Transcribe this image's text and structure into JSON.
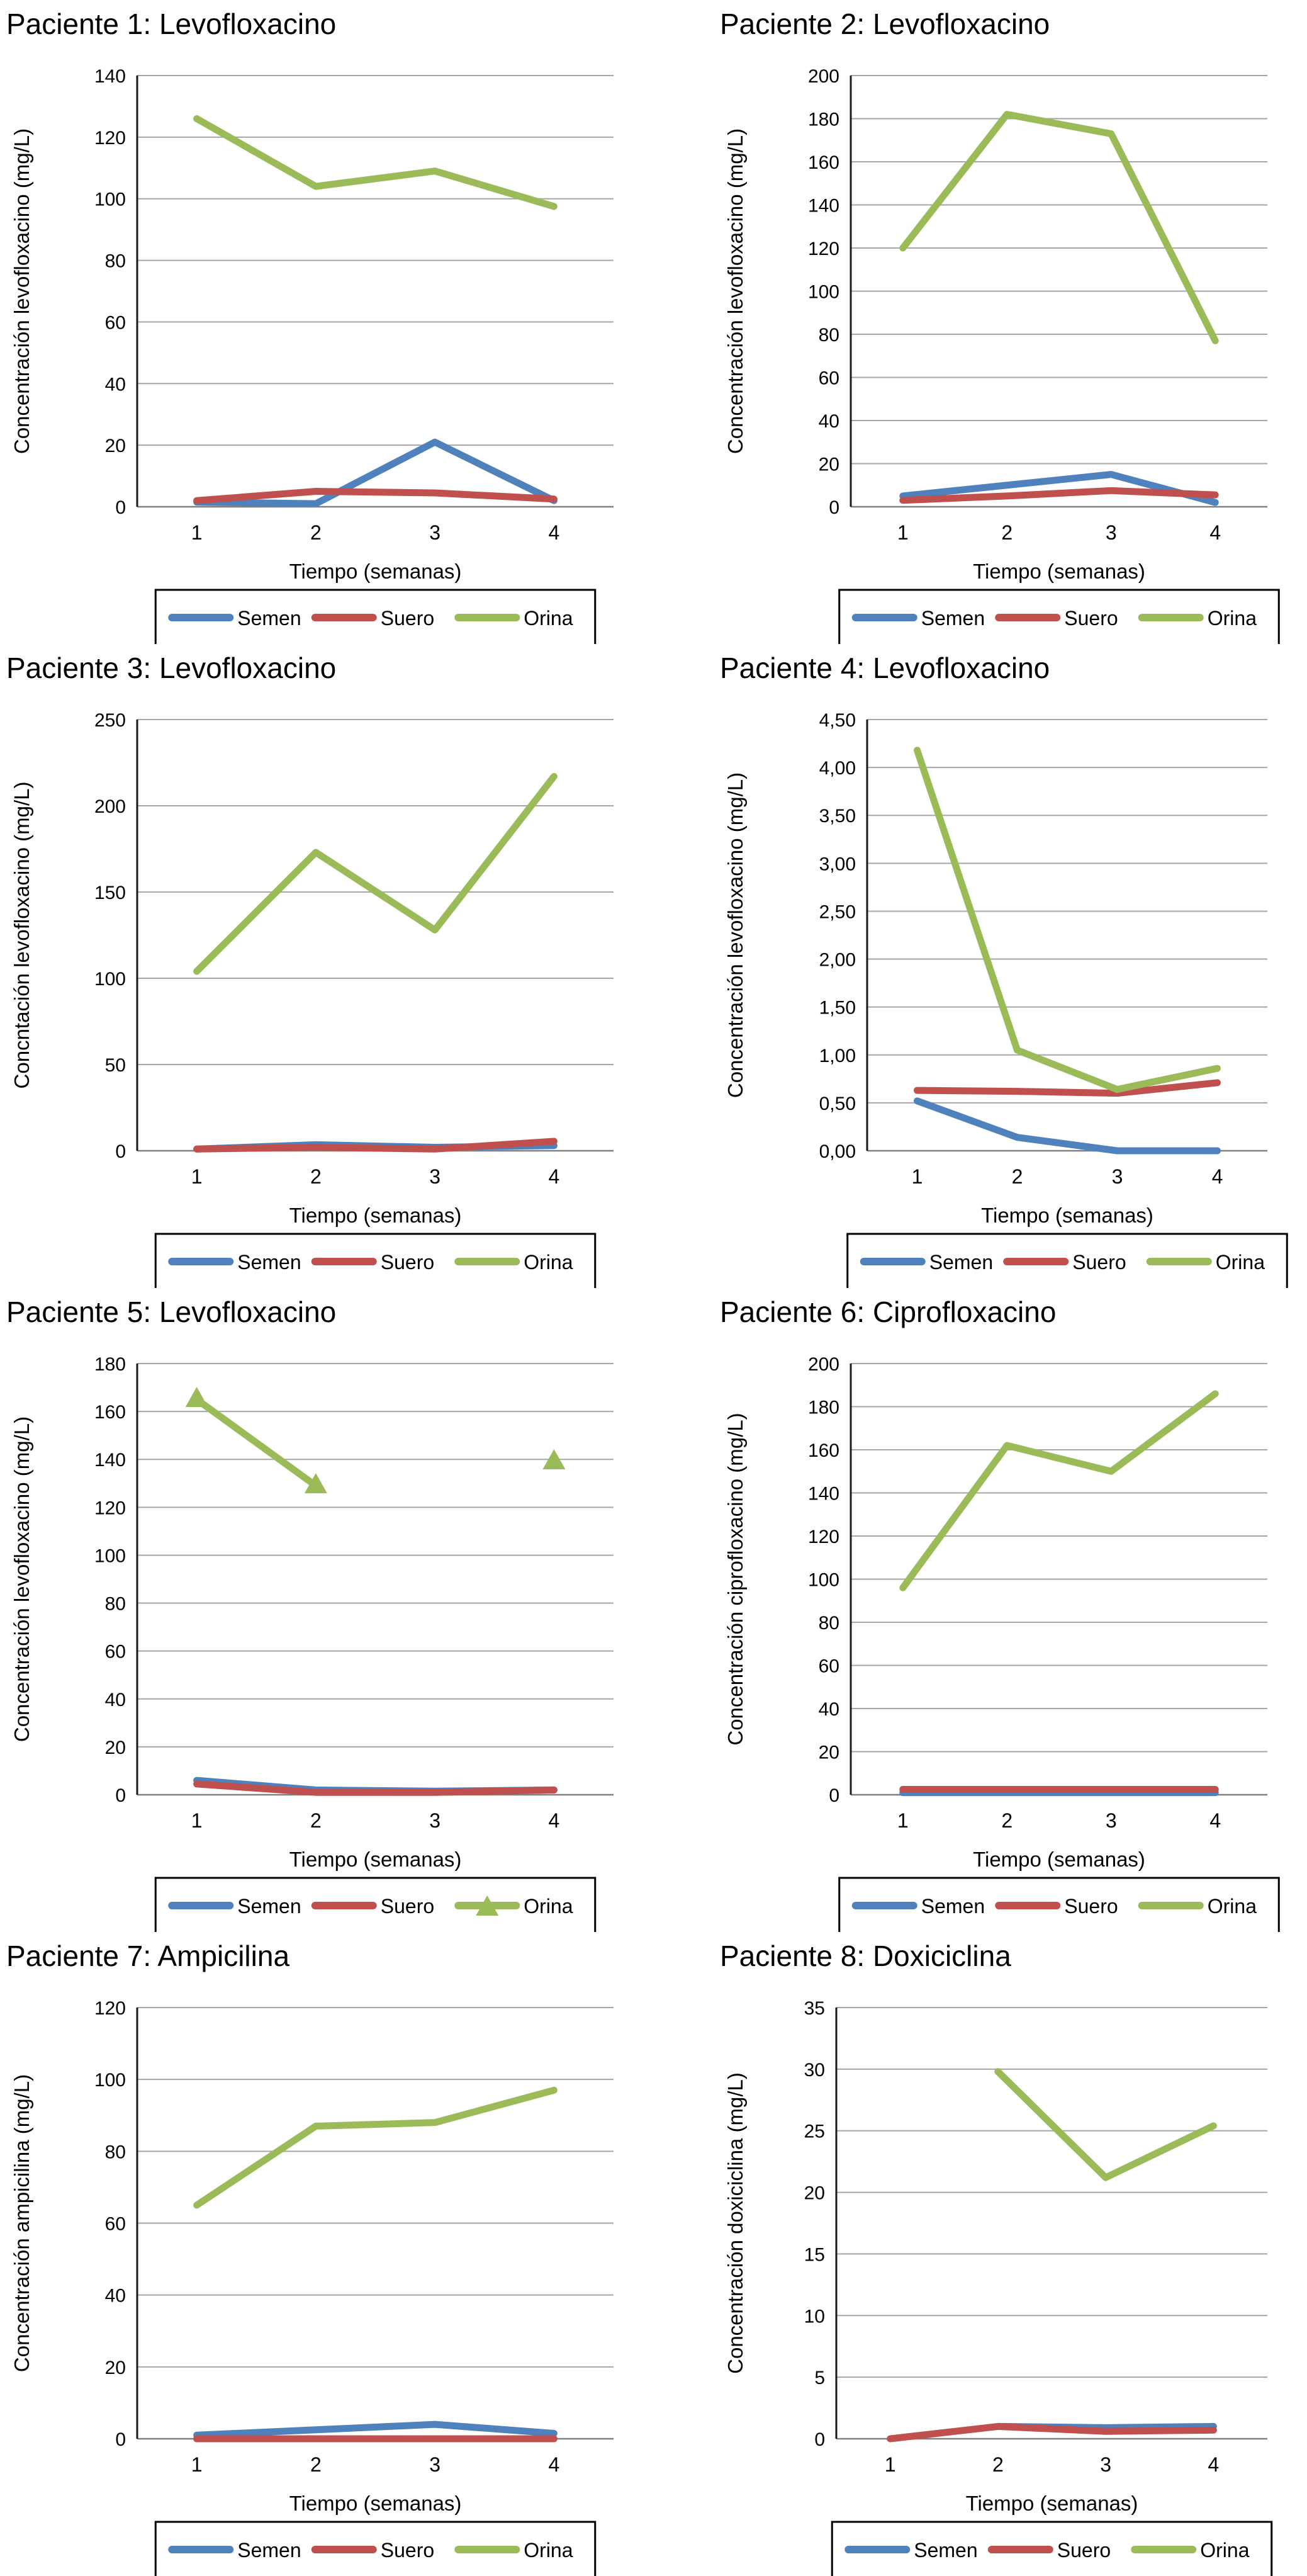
{
  "figure_title": "",
  "legend_labels": [
    "Semen",
    "Suero",
    "Orina"
  ],
  "colors": {
    "semen": "#4F81BD",
    "suero": "#C0504D",
    "orina": "#9BBB59",
    "gridline": "#A6A6A6",
    "baseline": "#808080",
    "axis": "#1A1A1A",
    "text": "#000000",
    "legend_border": "#000000"
  },
  "chart_data": [
    {
      "type": "line",
      "title": "Paciente 1: Levofloxacino",
      "ylabel": "Concentración levofloxacino (mg/L)",
      "xlabel": "Tiempo (semanas)",
      "categories": [
        "1",
        "2",
        "3",
        "4"
      ],
      "ylim": [
        0,
        140
      ],
      "ytick_values": [
        0,
        20,
        40,
        60,
        80,
        100,
        120,
        140
      ],
      "ytick_labels": [
        "0",
        "20",
        "40",
        "60",
        "80",
        "100",
        "120",
        "140"
      ],
      "grid": true,
      "legend_position": "bottom",
      "series": [
        {
          "name": "Semen",
          "color": "#4F81BD",
          "values": [
            1.5,
            1,
            21,
            2
          ]
        },
        {
          "name": "Suero",
          "color": "#C0504D",
          "values": [
            2,
            5,
            4.5,
            2.5
          ]
        },
        {
          "name": "Orina",
          "color": "#9BBB59",
          "values": [
            126,
            104,
            109,
            97.5
          ]
        }
      ]
    },
    {
      "type": "line",
      "title": "Paciente 2: Levofloxacino",
      "ylabel": "Concentración levofloxacino (mg/L)",
      "xlabel": "Tiempo (semanas)",
      "categories": [
        "1",
        "2",
        "3",
        "4"
      ],
      "ylim": [
        0,
        200
      ],
      "ytick_values": [
        0,
        20,
        40,
        60,
        80,
        100,
        120,
        140,
        160,
        180,
        200
      ],
      "ytick_labels": [
        "0",
        "20",
        "40",
        "60",
        "80",
        "100",
        "120",
        "140",
        "160",
        "180",
        "200"
      ],
      "grid": true,
      "legend_position": "bottom",
      "series": [
        {
          "name": "Semen",
          "color": "#4F81BD",
          "values": [
            5,
            10,
            15,
            2
          ]
        },
        {
          "name": "Suero",
          "color": "#C0504D",
          "values": [
            3,
            5,
            7.5,
            5.5
          ]
        },
        {
          "name": "Orina",
          "color": "#9BBB59",
          "values": [
            120,
            182,
            173,
            77
          ]
        }
      ]
    },
    {
      "type": "line",
      "title": "Paciente 3: Levofloxacino",
      "ylabel": "Concntación levofloxacino (mg/L)",
      "xlabel": "Tiempo (semanas)",
      "categories": [
        "1",
        "2",
        "3",
        "4"
      ],
      "ylim": [
        0,
        250
      ],
      "ytick_values": [
        0,
        50,
        100,
        150,
        200,
        250
      ],
      "ytick_labels": [
        "0",
        "50",
        "100",
        "150",
        "200",
        "250"
      ],
      "grid": true,
      "legend_position": "bottom",
      "series": [
        {
          "name": "Semen",
          "color": "#4F81BD",
          "values": [
            1,
            3.5,
            2,
            3
          ]
        },
        {
          "name": "Suero",
          "color": "#C0504D",
          "values": [
            1,
            2,
            1,
            5.5
          ]
        },
        {
          "name": "Orina",
          "color": "#9BBB59",
          "values": [
            104,
            173,
            128,
            217
          ]
        }
      ]
    },
    {
      "type": "line",
      "title": "Paciente 4: Levofloxacino",
      "ylabel": "Concentración levofloxacino (mg/L)",
      "xlabel": "Tiempo (semanas)",
      "categories": [
        "1",
        "2",
        "3",
        "4"
      ],
      "ylim": [
        0,
        4.5
      ],
      "ytick_values": [
        0,
        0.5,
        1,
        1.5,
        2,
        2.5,
        3,
        3.5,
        4,
        4.5
      ],
      "ytick_labels": [
        "0,00",
        "0,50",
        "1,00",
        "1,50",
        "2,00",
        "2,50",
        "3,00",
        "3,50",
        "4,00",
        "4,50"
      ],
      "grid": true,
      "legend_position": "bottom",
      "series": [
        {
          "name": "Semen",
          "color": "#4F81BD",
          "values": [
            0.52,
            0.14,
            0,
            0
          ]
        },
        {
          "name": "Suero",
          "color": "#C0504D",
          "values": [
            0.63,
            0.62,
            0.6,
            0.71
          ]
        },
        {
          "name": "Orina",
          "color": "#9BBB59",
          "values": [
            4.18,
            1.05,
            0.64,
            0.86
          ]
        }
      ]
    },
    {
      "type": "line",
      "title": "Paciente 5: Levofloxacino",
      "ylabel": "Concentración levofloxacino (mg/L)",
      "xlabel": "Tiempo (semanas)",
      "categories": [
        "1",
        "2",
        "3",
        "4"
      ],
      "ylim": [
        0,
        180
      ],
      "ytick_values": [
        0,
        20,
        40,
        60,
        80,
        100,
        120,
        140,
        160,
        180
      ],
      "ytick_labels": [
        "0",
        "20",
        "40",
        "60",
        "80",
        "100",
        "120",
        "140",
        "160",
        "180"
      ],
      "grid": true,
      "legend_position": "bottom",
      "series": [
        {
          "name": "Semen",
          "color": "#4F81BD",
          "values": [
            6,
            2,
            1.5,
            2
          ]
        },
        {
          "name": "Suero",
          "color": "#C0504D",
          "values": [
            4.5,
            1,
            1,
            2
          ]
        },
        {
          "name": "Orina",
          "color": "#9BBB59",
          "marker": "triangle",
          "values": [
            165,
            129,
            null,
            139
          ]
        }
      ]
    },
    {
      "type": "line",
      "title": "Paciente 6: Ciprofloxacino",
      "ylabel": "Concentración ciprofloxacino (mg/L)",
      "xlabel": "Tiempo (semanas)",
      "categories": [
        "1",
        "2",
        "3",
        "4"
      ],
      "ylim": [
        0,
        200
      ],
      "ytick_values": [
        0,
        20,
        40,
        60,
        80,
        100,
        120,
        140,
        160,
        180,
        200
      ],
      "ytick_labels": [
        "0",
        "20",
        "40",
        "60",
        "80",
        "100",
        "120",
        "140",
        "160",
        "180",
        "200"
      ],
      "grid": true,
      "legend_position": "bottom",
      "series": [
        {
          "name": "Semen",
          "color": "#4F81BD",
          "values": [
            1,
            1,
            1,
            1
          ]
        },
        {
          "name": "Suero",
          "color": "#C0504D",
          "values": [
            2.5,
            2.5,
            2.5,
            2.5
          ]
        },
        {
          "name": "Orina",
          "color": "#9BBB59",
          "values": [
            96,
            162,
            150,
            186
          ]
        }
      ]
    },
    {
      "type": "line",
      "title": "Paciente 7: Ampicilina",
      "ylabel": "Concentración ampicilina (mg/L)",
      "xlabel": "Tiempo (semanas)",
      "categories": [
        "1",
        "2",
        "3",
        "4"
      ],
      "ylim": [
        0,
        120
      ],
      "ytick_values": [
        0,
        20,
        40,
        60,
        80,
        100,
        120
      ],
      "ytick_labels": [
        "0",
        "20",
        "40",
        "60",
        "80",
        "100",
        "120"
      ],
      "grid": true,
      "legend_position": "bottom",
      "series": [
        {
          "name": "Semen",
          "color": "#4F81BD",
          "values": [
            1,
            2.5,
            4,
            1.5
          ]
        },
        {
          "name": "Suero",
          "color": "#C0504D",
          "values": [
            0,
            0,
            0,
            0
          ]
        },
        {
          "name": "Orina",
          "color": "#9BBB59",
          "values": [
            65,
            87,
            88,
            97
          ]
        }
      ]
    },
    {
      "type": "line",
      "title": "Paciente 8: Doxiciclina",
      "ylabel": "Concentración doxiciclina (mg/L)",
      "xlabel": "Tiempo (semanas)",
      "categories": [
        "1",
        "2",
        "3",
        "4"
      ],
      "ylim": [
        0,
        35
      ],
      "ytick_values": [
        0,
        5,
        10,
        15,
        20,
        25,
        30,
        35
      ],
      "ytick_labels": [
        "0",
        "5",
        "10",
        "15",
        "20",
        "25",
        "30",
        "35"
      ],
      "grid": true,
      "legend_position": "bottom",
      "series": [
        {
          "name": "Semen",
          "color": "#4F81BD",
          "values": [
            null,
            1,
            0.9,
            1
          ]
        },
        {
          "name": "Suero",
          "color": "#C0504D",
          "values": [
            0,
            1,
            0.6,
            0.7
          ]
        },
        {
          "name": "Orina",
          "color": "#9BBB59",
          "values": [
            null,
            29.8,
            21.2,
            25.4
          ]
        }
      ]
    }
  ]
}
